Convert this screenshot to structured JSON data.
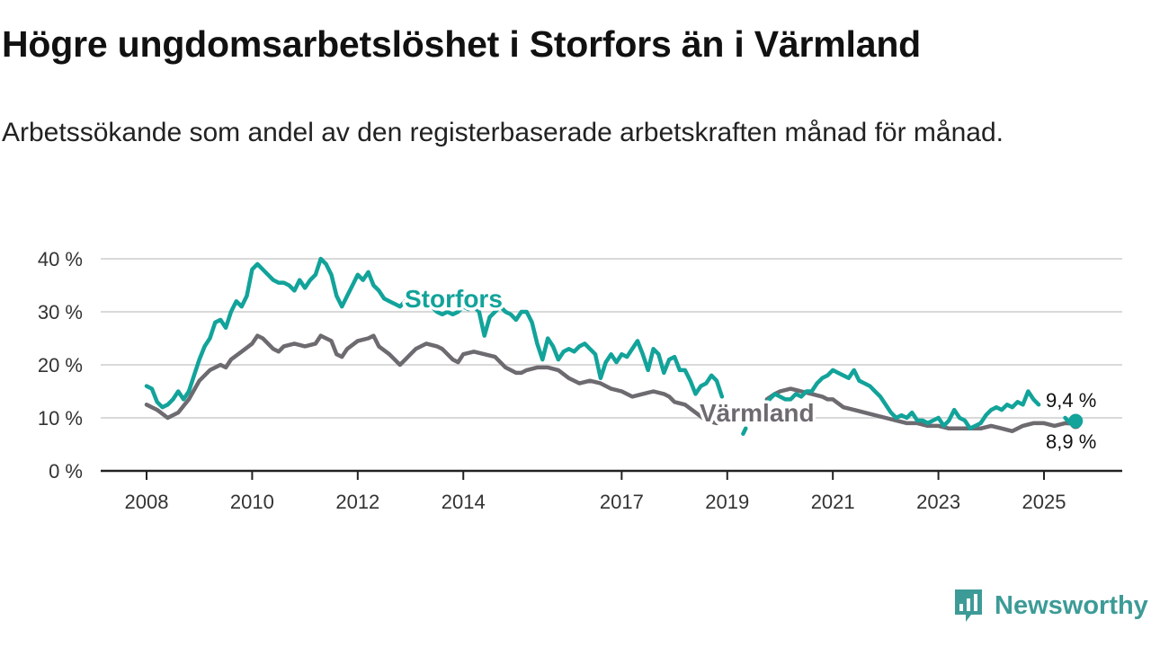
{
  "title": "Högre ungdomsarbetslöshet i Storfors än i Värmland",
  "subtitle": "Arbetssökande som andel av den registerbaserade arbetskraften månad för månad.",
  "brand": {
    "name": "Newsworthy",
    "icon": "newsworthy-logo-icon"
  },
  "colors": {
    "storfors": "#12a39a",
    "varmland": "#6d6a70",
    "grid": "#d9d9d9",
    "axis": "#222222"
  },
  "chart_data": {
    "type": "line",
    "title": "Högre ungdomsarbetslöshet i Storfors än i Värmland",
    "subtitle": "Arbetssökande som andel av den registerbaserade arbetskraften månad för månad.",
    "ylim": [
      0,
      40
    ],
    "yticks": [
      0,
      10,
      20,
      30,
      40
    ],
    "ytick_labels": [
      "0 %",
      "10 %",
      "20 %",
      "30 %",
      "40 %"
    ],
    "xticks": [
      2008,
      2010,
      2012,
      2014,
      2017,
      2019,
      2021,
      2023,
      2025
    ],
    "xtick_labels": [
      "2008",
      "2010",
      "2012",
      "2014",
      "2017",
      "2019",
      "2021",
      "2023",
      "2025"
    ],
    "grid": true,
    "legend": "direct labels on lines",
    "series": [
      {
        "name": "Storfors",
        "color": "#12a39a",
        "end_label": "9,4 %",
        "end_value": 9.4,
        "points": [
          [
            2008.0,
            16
          ],
          [
            2008.1,
            15.5
          ],
          [
            2008.2,
            13
          ],
          [
            2008.3,
            12
          ],
          [
            2008.4,
            12.5
          ],
          [
            2008.5,
            13.5
          ],
          [
            2008.6,
            15
          ],
          [
            2008.7,
            13.5
          ],
          [
            2008.8,
            15
          ],
          [
            2008.9,
            18
          ],
          [
            2009.0,
            21
          ],
          [
            2009.1,
            23.5
          ],
          [
            2009.2,
            25
          ],
          [
            2009.3,
            28
          ],
          [
            2009.4,
            28.5
          ],
          [
            2009.5,
            27
          ],
          [
            2009.6,
            30
          ],
          [
            2009.7,
            32
          ],
          [
            2009.8,
            31
          ],
          [
            2009.9,
            33
          ],
          [
            2010.0,
            38
          ],
          [
            2010.1,
            39
          ],
          [
            2010.2,
            38
          ],
          [
            2010.3,
            37
          ],
          [
            2010.4,
            36
          ],
          [
            2010.5,
            35.5
          ],
          [
            2010.6,
            35.5
          ],
          [
            2010.7,
            35
          ],
          [
            2010.8,
            34
          ],
          [
            2010.9,
            36
          ],
          [
            2011.0,
            34.5
          ],
          [
            2011.1,
            36
          ],
          [
            2011.2,
            37
          ],
          [
            2011.3,
            40
          ],
          [
            2011.4,
            39
          ],
          [
            2011.5,
            37
          ],
          [
            2011.6,
            33
          ],
          [
            2011.7,
            31
          ],
          [
            2011.8,
            33
          ],
          [
            2011.9,
            35
          ],
          [
            2012.0,
            37
          ],
          [
            2012.1,
            36
          ],
          [
            2012.2,
            37.5
          ],
          [
            2012.3,
            35
          ],
          [
            2012.4,
            34
          ],
          [
            2012.5,
            32.5
          ],
          [
            2012.6,
            32
          ],
          [
            2012.7,
            31.5
          ],
          [
            2012.8,
            31
          ],
          [
            2012.9,
            32
          ],
          [
            2013.0,
            33
          ],
          [
            2013.1,
            33
          ],
          [
            null,
            null
          ],
          [
            2013.4,
            31
          ],
          [
            2013.5,
            30
          ],
          [
            2013.6,
            29.5
          ],
          [
            2013.7,
            30
          ],
          [
            2013.8,
            29.5
          ],
          [
            2013.9,
            30
          ],
          [
            2014.0,
            31
          ],
          [
            2014.1,
            30.5
          ],
          [
            2014.2,
            31
          ],
          [
            2014.3,
            30
          ],
          [
            2014.4,
            25.5
          ],
          [
            2014.5,
            29
          ],
          [
            2014.6,
            30
          ],
          [
            2014.7,
            31
          ],
          [
            2014.8,
            30
          ],
          [
            2014.9,
            29.5
          ],
          [
            2015.0,
            28.5
          ],
          [
            2015.1,
            30
          ],
          [
            2015.2,
            30
          ],
          [
            2015.3,
            28
          ],
          [
            2015.4,
            24
          ],
          [
            2015.5,
            21
          ],
          [
            2015.6,
            25
          ],
          [
            2015.7,
            23.5
          ],
          [
            2015.8,
            21
          ],
          [
            2015.9,
            22.5
          ],
          [
            2016.0,
            23
          ],
          [
            2016.1,
            22.5
          ],
          [
            2016.2,
            23.5
          ],
          [
            2016.3,
            24
          ],
          [
            2016.4,
            23
          ],
          [
            2016.5,
            22
          ],
          [
            2016.6,
            17.5
          ],
          [
            2016.7,
            20.5
          ],
          [
            2016.8,
            22
          ],
          [
            2016.9,
            20.5
          ],
          [
            2017.0,
            22
          ],
          [
            2017.1,
            21.5
          ],
          [
            2017.2,
            23
          ],
          [
            2017.3,
            24.5
          ],
          [
            2017.4,
            22
          ],
          [
            2017.5,
            19
          ],
          [
            2017.6,
            23
          ],
          [
            2017.7,
            22
          ],
          [
            2017.8,
            18.5
          ],
          [
            2017.9,
            21
          ],
          [
            2018.0,
            21.5
          ],
          [
            2018.1,
            19
          ],
          [
            2018.2,
            19
          ],
          [
            2018.3,
            17
          ],
          [
            2018.4,
            14.5
          ],
          [
            2018.5,
            16
          ],
          [
            2018.6,
            16.5
          ],
          [
            2018.7,
            18
          ],
          [
            2018.8,
            17
          ],
          [
            2018.9,
            14
          ],
          [
            null,
            null
          ],
          [
            2019.3,
            7
          ],
          [
            2019.35,
            8
          ],
          [
            null,
            null
          ],
          [
            2019.75,
            13
          ],
          [
            2019.9,
            14.5
          ],
          [
            2020.0,
            14
          ],
          [
            2020.1,
            13.5
          ],
          [
            2020.2,
            13.5
          ],
          [
            2020.3,
            14.5
          ],
          [
            2020.4,
            14
          ],
          [
            2020.5,
            15
          ],
          [
            2020.6,
            15
          ],
          [
            2020.7,
            16.5
          ],
          [
            2020.8,
            17.5
          ],
          [
            2020.9,
            18
          ],
          [
            2021.0,
            19
          ],
          [
            2021.1,
            18.5
          ],
          [
            2021.2,
            18
          ],
          [
            2021.3,
            17.5
          ],
          [
            2021.4,
            19
          ],
          [
            2021.5,
            17
          ],
          [
            2021.6,
            16.5
          ],
          [
            2021.7,
            16
          ],
          [
            2021.8,
            15
          ],
          [
            2021.9,
            14
          ],
          [
            2022.0,
            12.5
          ],
          [
            2022.1,
            11
          ],
          [
            2022.2,
            10
          ],
          [
            2022.3,
            10.5
          ],
          [
            2022.4,
            10
          ],
          [
            2022.5,
            11
          ],
          [
            2022.6,
            9.5
          ],
          [
            2022.7,
            9.5
          ],
          [
            2022.8,
            9
          ],
          [
            2022.9,
            9.5
          ],
          [
            2023.0,
            10
          ],
          [
            2023.1,
            8.5
          ],
          [
            2023.2,
            9.5
          ],
          [
            2023.3,
            11.5
          ],
          [
            2023.4,
            10
          ],
          [
            2023.5,
            9.5
          ],
          [
            2023.6,
            8
          ],
          [
            2023.7,
            8.5
          ],
          [
            2023.8,
            9
          ],
          [
            2023.9,
            10.5
          ],
          [
            2024.0,
            11.5
          ],
          [
            2024.1,
            12
          ],
          [
            2024.2,
            11.5
          ],
          [
            2024.3,
            12.5
          ],
          [
            2024.4,
            12
          ],
          [
            2024.5,
            13
          ],
          [
            2024.6,
            12.5
          ],
          [
            2024.7,
            15
          ],
          [
            2024.8,
            13.5
          ],
          [
            2024.9,
            12.5
          ],
          [
            null,
            null
          ],
          [
            2025.4,
            10
          ],
          [
            2025.5,
            9
          ],
          [
            2025.6,
            9.4
          ]
        ]
      },
      {
        "name": "Värmland",
        "color": "#6d6a70",
        "end_label": "8,9 %",
        "end_value": 8.9,
        "points": [
          [
            2008.0,
            12.5
          ],
          [
            2008.2,
            11.5
          ],
          [
            2008.4,
            10
          ],
          [
            2008.6,
            11
          ],
          [
            2008.8,
            13.5
          ],
          [
            2009.0,
            17
          ],
          [
            2009.2,
            19
          ],
          [
            2009.4,
            20
          ],
          [
            2009.5,
            19.5
          ],
          [
            2009.6,
            21
          ],
          [
            2009.8,
            22.5
          ],
          [
            2010.0,
            24
          ],
          [
            2010.1,
            25.5
          ],
          [
            2010.2,
            25
          ],
          [
            2010.4,
            23
          ],
          [
            2010.5,
            22.5
          ],
          [
            2010.6,
            23.5
          ],
          [
            2010.8,
            24
          ],
          [
            2011.0,
            23.5
          ],
          [
            2011.2,
            24
          ],
          [
            2011.3,
            25.5
          ],
          [
            2011.5,
            24.5
          ],
          [
            2011.6,
            22
          ],
          [
            2011.7,
            21.5
          ],
          [
            2011.8,
            23
          ],
          [
            2012.0,
            24.5
          ],
          [
            2012.2,
            25
          ],
          [
            2012.3,
            25.5
          ],
          [
            2012.4,
            23.5
          ],
          [
            2012.6,
            22
          ],
          [
            2012.8,
            20
          ],
          [
            2012.9,
            21
          ],
          [
            2013.0,
            22
          ],
          [
            2013.1,
            23
          ],
          [
            2013.3,
            24
          ],
          [
            2013.5,
            23.5
          ],
          [
            2013.6,
            23
          ],
          [
            2013.8,
            21
          ],
          [
            2013.9,
            20.5
          ],
          [
            2014.0,
            22
          ],
          [
            2014.2,
            22.5
          ],
          [
            2014.4,
            22
          ],
          [
            2014.6,
            21.5
          ],
          [
            2014.8,
            19.5
          ],
          [
            2015.0,
            18.5
          ],
          [
            2015.1,
            18.5
          ],
          [
            2015.2,
            19
          ],
          [
            2015.4,
            19.5
          ],
          [
            2015.6,
            19.5
          ],
          [
            2015.8,
            19
          ],
          [
            2016.0,
            17.5
          ],
          [
            2016.2,
            16.5
          ],
          [
            2016.4,
            17
          ],
          [
            2016.6,
            16.5
          ],
          [
            2016.8,
            15.5
          ],
          [
            2017.0,
            15
          ],
          [
            2017.2,
            14
          ],
          [
            2017.4,
            14.5
          ],
          [
            2017.6,
            15
          ],
          [
            2017.8,
            14.5
          ],
          [
            2017.9,
            14
          ],
          [
            2018.0,
            13
          ],
          [
            2018.2,
            12.5
          ],
          [
            2018.4,
            11
          ],
          [
            2018.6,
            9.5
          ],
          [
            2018.8,
            9
          ],
          [
            null,
            null
          ],
          [
            2019.75,
            13.5
          ],
          [
            2019.9,
            14.5
          ],
          [
            2020.0,
            15
          ],
          [
            2020.2,
            15.5
          ],
          [
            2020.4,
            15
          ],
          [
            2020.6,
            14.5
          ],
          [
            2020.8,
            14
          ],
          [
            2020.9,
            13.5
          ],
          [
            2021.0,
            13.5
          ],
          [
            2021.2,
            12
          ],
          [
            2021.4,
            11.5
          ],
          [
            2021.6,
            11
          ],
          [
            2021.8,
            10.5
          ],
          [
            2022.0,
            10
          ],
          [
            2022.2,
            9.5
          ],
          [
            2022.4,
            9
          ],
          [
            2022.6,
            9
          ],
          [
            2022.8,
            8.5
          ],
          [
            2023.0,
            8.5
          ],
          [
            2023.2,
            8
          ],
          [
            2023.4,
            8
          ],
          [
            2023.6,
            8
          ],
          [
            2023.8,
            8
          ],
          [
            2024.0,
            8.5
          ],
          [
            2024.2,
            8
          ],
          [
            2024.4,
            7.5
          ],
          [
            2024.6,
            8.5
          ],
          [
            2024.8,
            9
          ],
          [
            2025.0,
            9
          ],
          [
            2025.2,
            8.5
          ],
          [
            2025.4,
            9
          ],
          [
            2025.6,
            8.9
          ]
        ]
      }
    ]
  }
}
